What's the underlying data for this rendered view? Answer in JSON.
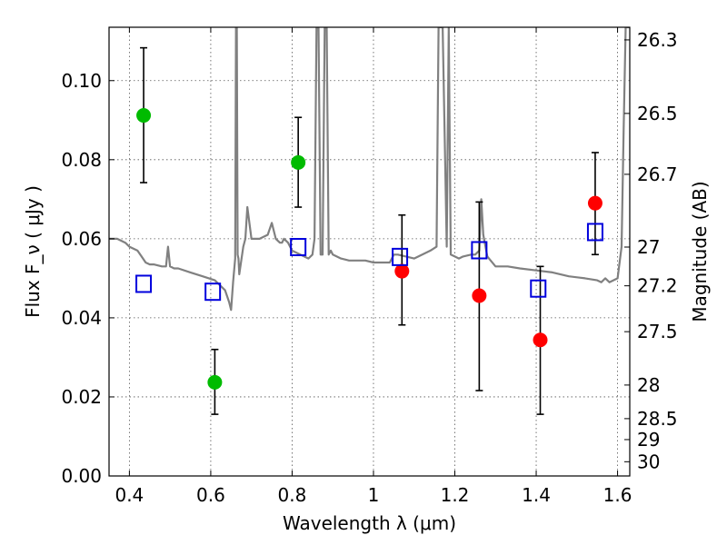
{
  "chart_data": {
    "type": "scatter",
    "title": "",
    "xlabel": "Wavelength  λ (μm)",
    "ylabel": "Flux  F_ν  ( μJy )",
    "ylabel_right": "Magnitude (AB)",
    "xlim": [
      0.35,
      1.63
    ],
    "ylim": [
      0.0,
      0.1135
    ],
    "grid": true,
    "legend": "none",
    "x_ticks": [
      0.4,
      0.6,
      0.8,
      1.0,
      1.2,
      1.4,
      1.6
    ],
    "x_tick_labels": [
      "0.4",
      "0.6",
      "0.8",
      "1",
      "1.2",
      "1.4",
      "1.6"
    ],
    "y_ticks": [
      0.0,
      0.02,
      0.04,
      0.06,
      0.08,
      0.1
    ],
    "y_tick_labels": [
      "0.00",
      "0.02",
      "0.04",
      "0.06",
      "0.08",
      "0.10"
    ],
    "right_ticks": [
      {
        "label": "26.3",
        "flux": 0.1103
      },
      {
        "label": "26.5",
        "flux": 0.0917
      },
      {
        "label": "26.7",
        "flux": 0.0763
      },
      {
        "label": "27",
        "flux": 0.0579
      },
      {
        "label": "27.2",
        "flux": 0.0481
      },
      {
        "label": "27.5",
        "flux": 0.0365
      },
      {
        "label": "28",
        "flux": 0.023
      },
      {
        "label": "28.5",
        "flux": 0.0145
      },
      {
        "label": "29",
        "flux": 0.0092
      },
      {
        "label": "30",
        "flux": 0.0036
      }
    ],
    "series": [
      {
        "color": "#00bb00",
        "marker": "circle",
        "x": [
          0.435,
          0.61,
          0.815
        ],
        "y": [
          0.0912,
          0.0237,
          0.0793
        ],
        "err_low": [
          0.0742,
          0.0156,
          0.068
        ],
        "err_high": [
          0.1083,
          0.032,
          0.0907
        ]
      },
      {
        "color": "#ff0000",
        "marker": "circle",
        "x": [
          1.07,
          1.26,
          1.41,
          1.545
        ],
        "y": [
          0.0518,
          0.0456,
          0.0344,
          0.069
        ],
        "err_low": [
          0.0382,
          0.0216,
          0.0156,
          0.056
        ],
        "err_high": [
          0.066,
          0.0693,
          0.053,
          0.0818
        ]
      },
      {
        "color": "#0000dd",
        "marker": "open-square",
        "x": [
          0.435,
          0.605,
          0.815,
          1.065,
          1.26,
          1.405,
          1.545
        ],
        "y": [
          0.0486,
          0.0466,
          0.0579,
          0.0554,
          0.0571,
          0.0474,
          0.0617
        ]
      },
      {
        "color": "#808080",
        "marker": "line",
        "x": [
          0.35,
          0.37,
          0.39,
          0.4,
          0.42,
          0.43,
          0.44,
          0.45,
          0.46,
          0.48,
          0.49,
          0.495,
          0.5,
          0.51,
          0.52,
          0.55,
          0.58,
          0.61,
          0.62,
          0.635,
          0.645,
          0.65,
          0.655,
          0.66,
          0.662,
          0.664,
          0.666,
          0.668,
          0.67,
          0.68,
          0.685,
          0.69,
          0.7,
          0.72,
          0.74,
          0.75,
          0.76,
          0.77,
          0.775,
          0.78,
          0.79,
          0.8,
          0.82,
          0.84,
          0.85,
          0.855,
          0.86,
          0.865,
          0.87,
          0.875,
          0.88,
          0.885,
          0.89,
          0.895,
          0.9,
          0.92,
          0.94,
          0.96,
          0.98,
          1.0,
          1.02,
          1.04,
          1.05,
          1.06,
          1.08,
          1.1,
          1.12,
          1.14,
          1.155,
          1.16,
          1.17,
          1.18,
          1.185,
          1.19,
          1.2,
          1.21,
          1.22,
          1.24,
          1.25,
          1.26,
          1.265,
          1.27,
          1.28,
          1.3,
          1.33,
          1.36,
          1.4,
          1.44,
          1.48,
          1.52,
          1.55,
          1.56,
          1.57,
          1.58,
          1.6,
          1.61,
          1.615,
          1.62,
          1.63
        ],
        "y": [
          0.06,
          0.06,
          0.059,
          0.058,
          0.057,
          0.0555,
          0.054,
          0.0535,
          0.0535,
          0.053,
          0.053,
          0.058,
          0.053,
          0.0525,
          0.0525,
          0.0515,
          0.0505,
          0.0495,
          0.0485,
          0.047,
          0.044,
          0.042,
          0.049,
          0.055,
          0.1135,
          0.1135,
          0.056,
          0.055,
          0.051,
          0.058,
          0.06,
          0.068,
          0.06,
          0.06,
          0.061,
          0.064,
          0.06,
          0.059,
          0.059,
          0.06,
          0.059,
          0.057,
          0.056,
          0.055,
          0.056,
          0.06,
          0.1135,
          0.1135,
          0.056,
          0.056,
          0.1135,
          0.1135,
          0.056,
          0.057,
          0.056,
          0.055,
          0.0545,
          0.0545,
          0.0545,
          0.054,
          0.054,
          0.054,
          0.056,
          0.056,
          0.0555,
          0.055,
          0.056,
          0.057,
          0.058,
          0.1135,
          0.1135,
          0.058,
          0.1135,
          0.056,
          0.0555,
          0.055,
          0.0555,
          0.056,
          0.056,
          0.057,
          0.07,
          0.061,
          0.0555,
          0.053,
          0.053,
          0.0525,
          0.052,
          0.0515,
          0.0505,
          0.05,
          0.0495,
          0.049,
          0.05,
          0.049,
          0.05,
          0.058,
          0.088,
          0.1135,
          0.1135
        ]
      }
    ]
  }
}
